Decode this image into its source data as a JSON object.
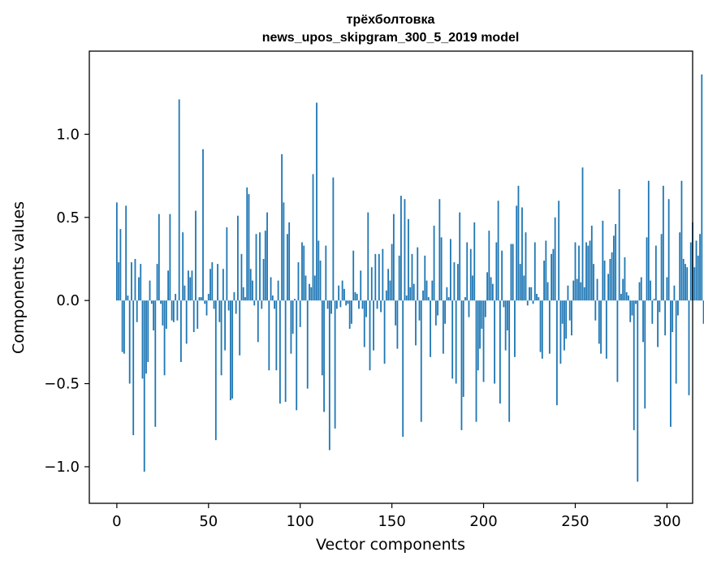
{
  "chart_data": {
    "type": "bar",
    "title_line1": "трёхболтовка",
    "title_line2": "news_upos_skipgram_300_5_2019 model",
    "xlabel": "Vector components",
    "ylabel": "Components values",
    "xlim": [
      -15,
      314
    ],
    "ylim": [
      -1.22,
      1.5
    ],
    "x_ticks": [
      0,
      50,
      100,
      150,
      200,
      250,
      300
    ],
    "x_tick_labels": [
      "0",
      "50",
      "100",
      "150",
      "200",
      "250",
      "300"
    ],
    "y_ticks": [
      1.0,
      0.5,
      0.0,
      -0.5,
      -1.0
    ],
    "y_tick_labels": [
      "1.0",
      "0.5",
      "0.0",
      "−0.5",
      "−1.0"
    ],
    "bar_color": "#1f77b4",
    "grid": false,
    "values": [
      0.59,
      0.23,
      0.43,
      -0.31,
      -0.32,
      0.57,
      0.03,
      -0.5,
      0.23,
      -0.81,
      0.25,
      -0.13,
      0.14,
      0.22,
      -0.47,
      -1.03,
      -0.44,
      -0.37,
      0.12,
      -0.02,
      -0.18,
      -0.76,
      0.22,
      0.52,
      -0.02,
      -0.15,
      -0.45,
      -0.17,
      0.18,
      0.52,
      -0.12,
      -0.13,
      0.04,
      -0.12,
      1.21,
      -0.37,
      0.41,
      0.09,
      -0.26,
      0.18,
      0.14,
      0.18,
      -0.19,
      0.54,
      -0.17,
      0.02,
      0.02,
      0.91,
      -0.02,
      -0.09,
      0.04,
      0.19,
      0.23,
      -0.05,
      -0.84,
      0.22,
      -0.13,
      -0.45,
      0.19,
      -0.3,
      0.44,
      -0.06,
      -0.6,
      -0.59,
      0.05,
      -0.08,
      0.51,
      -0.33,
      0.28,
      0.08,
      0.02,
      0.68,
      0.64,
      0.19,
      0.12,
      -0.03,
      0.4,
      -0.25,
      0.41,
      -0.05,
      0.25,
      0.42,
      0.53,
      -0.42,
      0.14,
      0.03,
      -0.05,
      -0.42,
      0.12,
      -0.62,
      0.88,
      0.59,
      -0.61,
      0.4,
      0.47,
      -0.32,
      -0.2,
      0.01,
      -0.66,
      0.23,
      -0.16,
      0.35,
      0.33,
      0.15,
      -0.53,
      0.1,
      0.08,
      0.76,
      0.15,
      1.19,
      0.36,
      0.24,
      -0.45,
      -0.67,
      0.33,
      -0.05,
      -0.9,
      -0.08,
      0.74,
      -0.77,
      -0.05,
      0.09,
      -0.04,
      0.12,
      0.07,
      -0.03,
      -0.02,
      -0.17,
      -0.14,
      0.3,
      0.05,
      0.04,
      -0.05,
      0.18,
      -0.05,
      -0.28,
      -0.1,
      0.53,
      -0.42,
      0.2,
      -0.3,
      0.28,
      -0.05,
      0.28,
      -0.07,
      0.31,
      -0.38,
      0.06,
      0.19,
      0.12,
      0.34,
      0.52,
      -0.15,
      -0.29,
      0.27,
      0.63,
      -0.82,
      0.61,
      0.03,
      0.49,
      0.08,
      0.28,
      0.1,
      -0.27,
      0.32,
      -0.12,
      -0.73,
      0.06,
      0.27,
      0.12,
      0.02,
      -0.34,
      0.12,
      0.45,
      -0.15,
      -0.09,
      0.61,
      0.38,
      -0.32,
      -0.14,
      0.08,
      0.02,
      0.37,
      -0.47,
      0.23,
      -0.5,
      0.22,
      0.53,
      -0.78,
      -0.58,
      0.02,
      0.35,
      -0.1,
      0.31,
      0.15,
      0.47,
      -0.73,
      -0.42,
      -0.29,
      -0.17,
      -0.49,
      -0.1,
      0.17,
      0.42,
      0.14,
      0.1,
      -0.5,
      0.35,
      0.6,
      -0.62,
      0.3,
      -0.04,
      -0.3,
      -0.18,
      -0.73,
      0.34,
      0.34,
      -0.34,
      0.57,
      0.69,
      0.22,
      0.56,
      0.15,
      0.41,
      -0.03,
      0.08,
      0.08,
      -0.02,
      0.35,
      0.04,
      0.02,
      -0.31,
      -0.35,
      0.24,
      0.36,
      0.11,
      -0.32,
      0.28,
      0.31,
      0.5,
      -0.63,
      0.6,
      -0.38,
      -0.14,
      -0.3,
      -0.23,
      0.09,
      -0.12,
      -0.21,
      0.12,
      0.35,
      0.13,
      0.33,
      0.11,
      0.8,
      0.08,
      0.35,
      0.33,
      0.36,
      0.45,
      0.22,
      -0.12,
      0.13,
      -0.26,
      -0.32,
      0.48,
      0.24,
      -0.35,
      0.16,
      0.25,
      0.29,
      0.39,
      0.46,
      -0.49,
      0.67,
      0.04,
      0.13,
      0.26,
      0.05,
      0.03,
      -0.13,
      -0.09,
      -0.78,
      -0.02,
      -1.09,
      0.11,
      0.14,
      -0.25,
      -0.65,
      0.38,
      0.72,
      0.12,
      -0.14,
      0.01,
      0.33,
      -0.28,
      -0.07,
      0.4,
      0.69,
      -0.21,
      0.14,
      0.61,
      -0.76,
      -0.19,
      0.09,
      -0.5,
      -0.09,
      0.41,
      0.72,
      0.25,
      0.22,
      0.2,
      -0.57,
      0.35,
      0.47,
      0.2,
      0.36,
      0.27,
      0.4,
      1.36,
      -0.14,
      -0.06
    ]
  }
}
